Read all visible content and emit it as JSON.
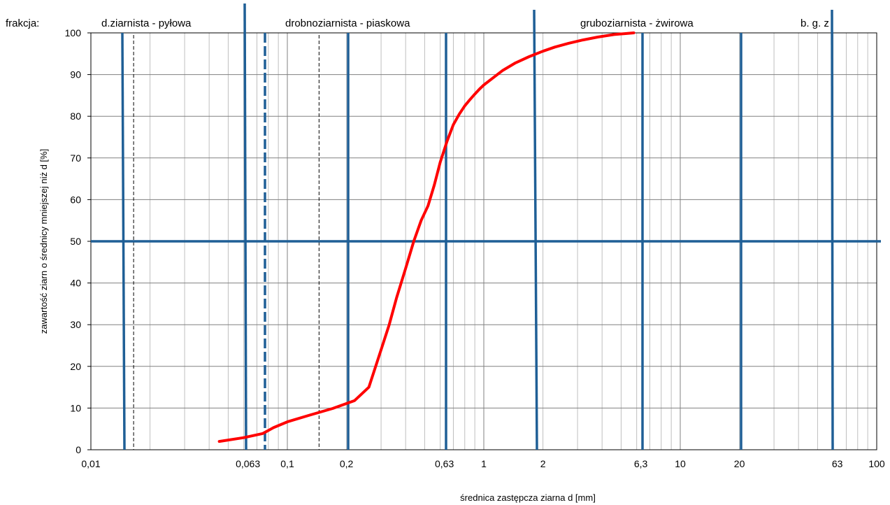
{
  "colors": {
    "curve": "#ff0000",
    "boundary": "#1f5f96",
    "minor_grid": "#bfbfbf",
    "major_grid": "#808080",
    "axis": "#000000"
  },
  "chart_data": {
    "type": "line",
    "title": "",
    "xlabel": "średnica zastępcza ziarna d [mm]",
    "ylabel": "zawartość ziarn o średnicy mniejszej niż d [%]",
    "x_scale": "log",
    "ylim": [
      0,
      100
    ],
    "grid": true,
    "y_ticks": [
      "0",
      "10",
      "20",
      "30",
      "40",
      "50",
      "60",
      "70",
      "80",
      "90",
      "100"
    ],
    "x_tick_labels": [
      "0,01",
      "0,063",
      "0,1",
      "0,2",
      "0,63",
      "1",
      "2",
      "6,3",
      "10",
      "20",
      "63",
      "100"
    ],
    "fraction_label": "frakcja:",
    "fractions": [
      "d.ziarnista - pyłowa",
      "drobnoziarnista - piaskowa",
      "gruboziarnista - żwirowa",
      "b. g. z"
    ],
    "series": [
      {
        "x": [
          0.045,
          0.06,
          0.075,
          0.085,
          0.1,
          0.13,
          0.17,
          0.22,
          0.26,
          0.3,
          0.33,
          0.36,
          0.4,
          0.44,
          0.48,
          0.52,
          0.56,
          0.6,
          0.65,
          0.7,
          0.75,
          0.8,
          0.85,
          0.9,
          0.95,
          1.0,
          1.1,
          1.25,
          1.45,
          1.7,
          2.0,
          2.3,
          2.7,
          3.2,
          3.8,
          4.6,
          5.8
        ],
        "y": [
          2.0,
          2.9,
          3.9,
          5.3,
          6.7,
          8.3,
          9.9,
          11.8,
          15.0,
          24.0,
          30.0,
          36.5,
          43.5,
          50.0,
          55.0,
          58.5,
          63.5,
          69.0,
          74.0,
          78.0,
          80.5,
          82.5,
          84.0,
          85.3,
          86.5,
          87.5,
          89.0,
          91.0,
          92.8,
          94.3,
          95.6,
          96.6,
          97.5,
          98.3,
          99.0,
          99.6,
          100.0
        ]
      }
    ]
  }
}
